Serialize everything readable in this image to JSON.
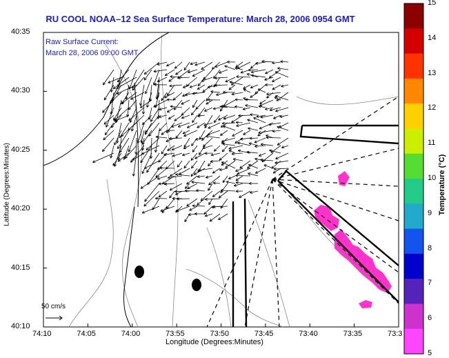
{
  "title": "RU COOL  NOAA–12  Sea Surface Temperature:  March 28, 2006 0954 GMT",
  "annotation": {
    "line1": "Raw Surface Current:",
    "line2": "March 28, 2006 09:00 GMT"
  },
  "scale_label": "50 cm/s",
  "x_axis": {
    "label": "Longitude (Degrees:Minutes)",
    "ticks": [
      "74:10",
      "74:05",
      "74:00",
      "73:55",
      "73:50",
      "73:45",
      "73:40",
      "73:35",
      "73:3"
    ]
  },
  "y_axis": {
    "label": "Latitude (Degrees:Minutes)",
    "ticks": [
      "40:35",
      "40:30",
      "40:25",
      "40:20",
      "40:15",
      "40:10"
    ]
  },
  "colorbar": {
    "label": "Temperature (°C)",
    "ticks": [
      "15",
      "14",
      "13",
      "12",
      "11",
      "10",
      "9",
      "8",
      "7",
      "6",
      "5"
    ],
    "colors": [
      "#8b0000",
      "#d40000",
      "#ff3300",
      "#ff8800",
      "#ffd000",
      "#ccee00",
      "#55dd33",
      "#22cc88",
      "#22aacc",
      "#1155ee",
      "#0000cc",
      "#5522bb",
      "#cc33cc",
      "#ff44ff"
    ]
  },
  "sst_color": "#ff33cc"
}
